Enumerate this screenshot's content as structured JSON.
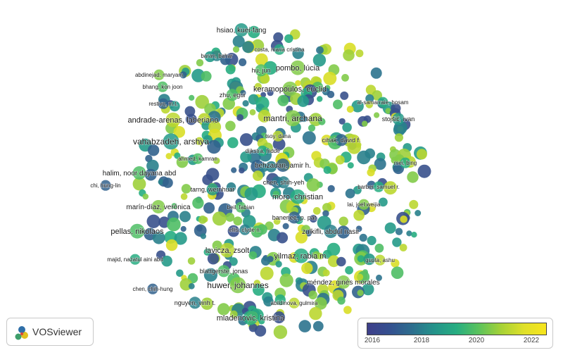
{
  "chart_data": {
    "type": "scatter",
    "title": "",
    "color_scale": {
      "min": 2015,
      "max": 2023,
      "ticks": [
        "2016",
        "2018",
        "2020",
        "2022"
      ],
      "colors": [
        "#3e3f8a",
        "#2d6e8e",
        "#24938a",
        "#27ad81",
        "#5cc35c",
        "#a7d236",
        "#f7e51d"
      ]
    },
    "authors": [
      {
        "name": "hsiao, kuei-fang",
        "year": 2018
      },
      {
        "name": "costa, maria cristina",
        "year": 2019
      },
      {
        "name": "baran, bahar",
        "year": 2017
      },
      {
        "name": "pombo, lúcia",
        "year": 2021
      },
      {
        "name": "hu, jun",
        "year": 2020
      },
      {
        "name": "abdinejad, maryam",
        "year": 2021
      },
      {
        "name": "bhang, kon joon",
        "year": 2020
      },
      {
        "name": "keramopoulos, euclid",
        "year": 2021
      },
      {
        "name": "zhu, egui",
        "year": 2020
      },
      {
        "name": "al-samarraie, hosam",
        "year": 2019
      },
      {
        "name": "restivo, m.t.",
        "year": 2016
      },
      {
        "name": "mantri, archana",
        "year": 2021
      },
      {
        "name": "stojšić, ivan",
        "year": 2018
      },
      {
        "name": "andrade-arenas, laberiano",
        "year": 2022
      },
      {
        "name": "tsoy, dana",
        "year": 2022
      },
      {
        "name": "cihak, david f.",
        "year": 2016
      },
      {
        "name": "vahabzadeh, arshya",
        "year": 2018
      },
      {
        "name": "dijkstra, hidde",
        "year": 2019
      },
      {
        "name": "ahmed, kamran",
        "year": 2020
      },
      {
        "name": "behzadan, amir h.",
        "year": 2016
      },
      {
        "name": "mei, bing",
        "year": 2019
      },
      {
        "name": "halim, noor dayana abd",
        "year": 2020
      },
      {
        "name": "chi, hung-lin",
        "year": 2016
      },
      {
        "name": "chen, shih-yeh",
        "year": 2017
      },
      {
        "name": "tarng, wernhuar",
        "year": 2018
      },
      {
        "name": "barber, samuel r.",
        "year": 2019
      },
      {
        "name": "moro, christian",
        "year": 2019
      },
      {
        "name": "lai, joel weijia",
        "year": 2021
      },
      {
        "name": "marín-díaz, verónica",
        "year": 2021
      },
      {
        "name": "beil, fabian",
        "year": 2020
      },
      {
        "name": "banerjee, p. pat",
        "year": 2016
      },
      {
        "name": "pellas, nikolaos",
        "year": 2020
      },
      {
        "name": "ellis, clyde n.",
        "year": 2017
      },
      {
        "name": "zulkifli, abdul nasir",
        "year": 2017
      },
      {
        "name": "lavicza, zsolt",
        "year": 2022
      },
      {
        "name": "yilmaz, rabia m.",
        "year": 2019
      },
      {
        "name": "majid, nazatul aini abd",
        "year": 2019
      },
      {
        "name": "gupta, ashu",
        "year": 2022
      },
      {
        "name": "blattgerste, jonas",
        "year": 2020
      },
      {
        "name": "méndez, ginés morales",
        "year": 2021
      },
      {
        "name": "huwer, johannes",
        "year": 2021
      },
      {
        "name": "chen, chih-hung",
        "year": 2016
      },
      {
        "name": "nguyen, vinh t.",
        "year": 2017
      },
      {
        "name": "abildinova, gulmira",
        "year": 2022
      },
      {
        "name": "mladenovic, kristina",
        "year": 2019
      }
    ]
  },
  "branding": {
    "app_name": "VOSviewer"
  }
}
